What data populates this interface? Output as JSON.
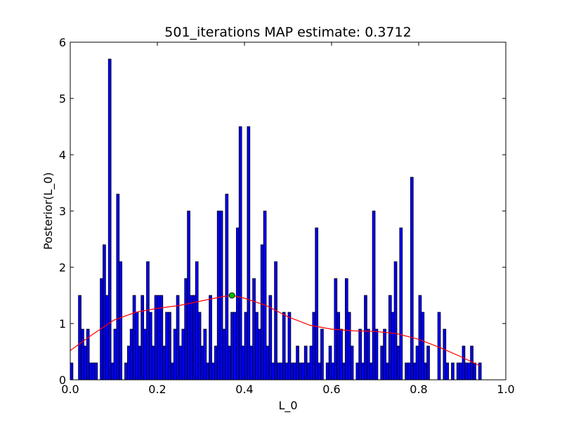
{
  "chart_data": {
    "type": "bar",
    "title": "501_iterations MAP estimate: 0.3712",
    "xlabel": "L_0",
    "ylabel": "Posterior(L_0)",
    "xlim": [
      0.0,
      1.0
    ],
    "ylim": [
      0,
      6
    ],
    "xticks": [
      "0.0",
      "0.2",
      "0.4",
      "0.6",
      "0.8",
      "1.0"
    ],
    "yticks": [
      "0",
      "1",
      "2",
      "3",
      "4",
      "5",
      "6"
    ],
    "grid": false,
    "bin_width": 0.00625,
    "bins": {
      "start": 0.0,
      "values": [
        0.3,
        0,
        0,
        1.5,
        0.9,
        0.6,
        0.9,
        0.3,
        0.3,
        0.3,
        0,
        1.8,
        2.4,
        1.5,
        5.7,
        0.3,
        0.9,
        3.3,
        2.1,
        0,
        0.3,
        0.6,
        0.9,
        1.5,
        1.2,
        0.6,
        1.5,
        0.9,
        2.1,
        1.2,
        0.6,
        1.5,
        1.5,
        1.5,
        0.6,
        1.2,
        1.2,
        0.3,
        0.9,
        1.5,
        0.6,
        0.9,
        1.8,
        3.0,
        1.5,
        1.5,
        2.1,
        1.2,
        0.6,
        0.9,
        0.3,
        1.5,
        0.3,
        0.6,
        3.0,
        3.0,
        0.9,
        3.3,
        0.6,
        1.2,
        1.2,
        2.7,
        4.5,
        0.6,
        1.2,
        4.5,
        0.6,
        1.8,
        1.2,
        0.9,
        2.4,
        3.0,
        0.6,
        1.5,
        0.3,
        2.1,
        0.3,
        0.3,
        1.2,
        0.3,
        1.2,
        0.3,
        0.3,
        0.6,
        0.3,
        0.3,
        0.6,
        0.3,
        0.6,
        1.2,
        2.7,
        0.3,
        0.9,
        0,
        0.3,
        0.6,
        0.3,
        1.8,
        1.2,
        0.9,
        0.3,
        1.8,
        1.2,
        0.6,
        0,
        0.3,
        0.9,
        0.3,
        1.5,
        0.9,
        0.3,
        3.0,
        0.9,
        0,
        0.6,
        0.9,
        0.3,
        1.5,
        1.2,
        2.1,
        0.6,
        2.7,
        0,
        0.3,
        0.3,
        3.6,
        0.3,
        0.6,
        1.5,
        1.2,
        0.3,
        0.6,
        0,
        0,
        0,
        1.2,
        0,
        0.9,
        0.3,
        0,
        0.3,
        0,
        0.3,
        0.3,
        0.6,
        0.3,
        0.3,
        0.6,
        0.3,
        0,
        0.3
      ]
    },
    "series": [
      {
        "type": "line",
        "color": "#ff0000",
        "x": [
          0.0,
          0.05,
          0.1,
          0.15,
          0.2,
          0.25,
          0.3,
          0.35,
          0.3712,
          0.4,
          0.45,
          0.5,
          0.55,
          0.6,
          0.65,
          0.7,
          0.75,
          0.8,
          0.85,
          0.9,
          0.94
        ],
        "y": [
          0.52,
          0.8,
          1.06,
          1.2,
          1.27,
          1.32,
          1.4,
          1.48,
          1.5,
          1.45,
          1.32,
          1.12,
          0.97,
          0.9,
          0.87,
          0.86,
          0.82,
          0.72,
          0.57,
          0.4,
          0.25
        ]
      }
    ],
    "map_point": {
      "x": 0.3712,
      "y": 1.5,
      "color": "#00bf00"
    },
    "bar_color": "#0000ff"
  }
}
